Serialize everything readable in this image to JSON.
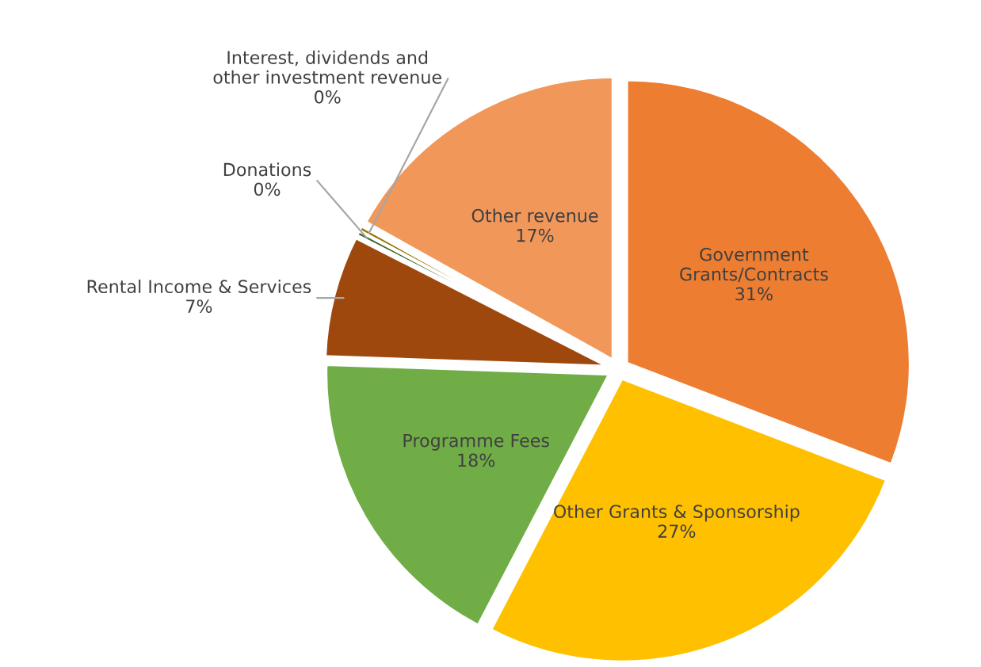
{
  "chart_data": {
    "type": "pie",
    "categories": [
      "Government Grants/Contracts",
      "Other Grants & Sponsorship",
      "Programme Fees",
      "Rental Income & Services",
      "Donations",
      "Interest, dividends and other investment revenue",
      "Other revenue"
    ],
    "values": [
      31,
      27,
      18,
      7,
      0.3,
      0.3,
      17
    ],
    "value_labels": [
      "31%",
      "27%",
      "18%",
      "7%",
      "0%",
      "0%",
      "17%"
    ],
    "colors": [
      "#ed7d31",
      "#ffc000",
      "#70ad47",
      "#9e480e",
      "#43682b",
      "#997300",
      "#f1975a"
    ],
    "legend": false
  }
}
